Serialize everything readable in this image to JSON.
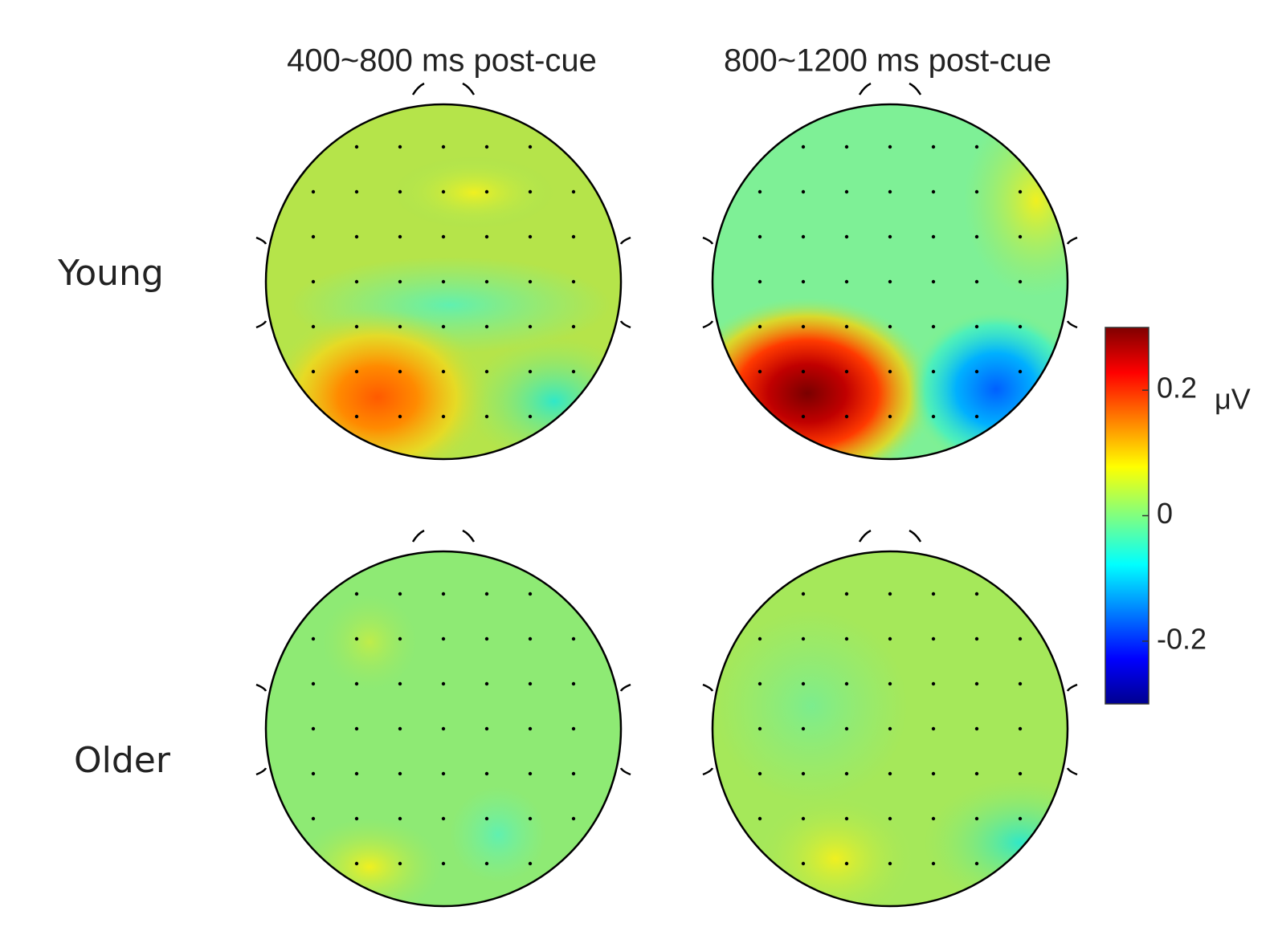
{
  "columns": [
    "400~800 ms post-cue",
    "800~1200 ms post-cue"
  ],
  "rows": [
    "Young",
    "Older"
  ],
  "colorbar": {
    "lim": [
      -0.3,
      0.3
    ],
    "ticks": [
      0.2,
      0,
      -0.2
    ],
    "unit": "μV"
  }
}
